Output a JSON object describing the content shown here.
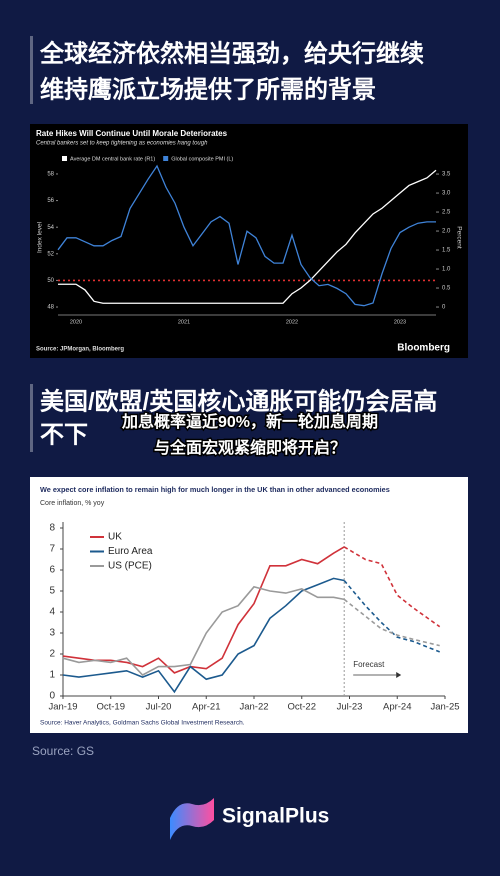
{
  "header": {
    "title_lines": [
      "全球经济依然相当强劲，给央行继续",
      "维持鹰派立场提供了所需的背景"
    ]
  },
  "section2": {
    "title_lines": [
      "美国/欧盟/英国核心通胀可能仍会居高",
      "不下"
    ],
    "overlay_lines": [
      "加息概率逼近90%，新一轮加息周期",
      "与全面宏观紧缩即将开启？"
    ]
  },
  "chart_data": [
    {
      "type": "line",
      "title": "Rate Hikes Will Continue Until Morale Deteriorates",
      "subtitle": "Central bankers set to keep tightening as economies hang tough",
      "categories": [
        null,
        null,
        "2020",
        null,
        null,
        null,
        null,
        null,
        null,
        null,
        null,
        null,
        null,
        null,
        "2021",
        null,
        null,
        null,
        null,
        null,
        null,
        null,
        null,
        null,
        null,
        null,
        "2022",
        null,
        null,
        null,
        null,
        null,
        null,
        null,
        null,
        null,
        null,
        null,
        "2023",
        null,
        null,
        null,
        null
      ],
      "series": [
        {
          "name": "Average DM central bank rate (R1)",
          "color": "#ffffff",
          "axis": "y2",
          "values": [
            0.6,
            0.6,
            0.6,
            0.45,
            0.15,
            0.1,
            0.1,
            0.1,
            0.1,
            0.1,
            0.1,
            0.1,
            0.1,
            0.1,
            0.1,
            0.1,
            0.1,
            0.1,
            0.1,
            0.1,
            0.1,
            0.1,
            0.1,
            0.1,
            0.1,
            0.1,
            0.35,
            0.5,
            0.7,
            0.95,
            1.2,
            1.45,
            1.65,
            1.95,
            2.2,
            2.45,
            2.6,
            2.8,
            3.0,
            3.2,
            3.3,
            3.4,
            3.6
          ]
        },
        {
          "name": "Global composite PMI (L)",
          "color": "#3f83d8",
          "values": [
            52.3,
            53.2,
            53.2,
            52.9,
            52.6,
            52.6,
            53.0,
            53.3,
            55.4,
            56.5,
            57.6,
            58.6,
            57.0,
            55.8,
            54.0,
            52.6,
            53.5,
            54.4,
            54.8,
            54.3,
            51.2,
            53.7,
            53.2,
            51.8,
            51.3,
            51.3,
            53.4,
            51.2,
            50.2,
            49.6,
            49.7,
            49.4,
            49.0,
            48.2,
            48.1,
            48.3,
            50.5,
            52.4,
            53.6,
            54.0,
            54.3,
            54.4,
            54.4
          ]
        }
      ],
      "ylabel": "Index level",
      "y2label": "Percent",
      "ylim": [
        47.4,
        59.05
      ],
      "yticks": [
        48,
        50,
        52,
        54,
        56,
        58
      ],
      "y2lim": [
        -0.21,
        3.87
      ],
      "y2ticks": [
        0,
        0.5,
        {
          "value": 1,
          "label": "1.0"
        },
        1.5,
        {
          "value": 2,
          "label": "2.0"
        },
        2.5,
        {
          "value": 3,
          "label": "3.0"
        },
        3.5
      ],
      "reference_line": 50,
      "reference_color": "#e03030",
      "source": "Source: JPMorgan, Bloomberg",
      "brand": "Bloomberg"
    },
    {
      "type": "line",
      "title": "We expect core inflation to remain high for much longer in the UK than in other advanced economies",
      "subtitle": "Core inflation, % yoy",
      "x": [
        "2019-01",
        "2019-04",
        "2019-07",
        "2019-10",
        "2020-01",
        "2020-04",
        "2020-07",
        "2020-10",
        "2021-01",
        "2021-04",
        "2021-07",
        "2021-10",
        "2022-01",
        "2022-04",
        "2022-07",
        "2022-10",
        "2023-01",
        "2023-04",
        "2023-06",
        "2023-10",
        "2024-01",
        "2024-04",
        "2024-07",
        "2024-12"
      ],
      "series": [
        {
          "name": "UK",
          "color": "#d0323a",
          "values": [
            1.9,
            1.8,
            1.7,
            1.7,
            1.6,
            1.4,
            1.8,
            1.1,
            1.4,
            1.3,
            1.8,
            3.4,
            4.4,
            6.2,
            6.2,
            6.5,
            6.3,
            6.8,
            7.1,
            6.5,
            6.3,
            4.8,
            4.2,
            3.3
          ]
        },
        {
          "name": "Euro Area",
          "color": "#1c5a8e",
          "values": [
            1.0,
            0.9,
            1.0,
            1.1,
            1.2,
            0.9,
            1.2,
            0.2,
            1.4,
            0.8,
            1.0,
            2.0,
            2.4,
            3.7,
            4.3,
            5.0,
            5.3,
            5.6,
            5.5,
            4.3,
            3.5,
            2.8,
            2.6,
            2.1
          ]
        },
        {
          "name": "US (PCE)",
          "color": "#9a9a9a",
          "values": [
            1.8,
            1.6,
            1.7,
            1.6,
            1.8,
            1.0,
            1.4,
            1.4,
            1.5,
            3.0,
            4.0,
            4.3,
            5.2,
            5.0,
            4.9,
            5.1,
            4.7,
            4.7,
            4.6,
            3.8,
            3.2,
            2.9,
            2.7,
            2.4
          ]
        }
      ],
      "xlim": [
        "2019-01",
        "2025-01"
      ],
      "xticks": [
        {
          "value": "2019-01",
          "label": "Jan-19"
        },
        {
          "value": "2019-10",
          "label": "Oct-19"
        },
        {
          "value": "2020-07",
          "label": "Jul-20"
        },
        {
          "value": "2021-04",
          "label": "Apr-21"
        },
        {
          "value": "2022-01",
          "label": "Jan-22"
        },
        {
          "value": "2022-10",
          "label": "Oct-22"
        },
        {
          "value": "2023-07",
          "label": "Jul-23"
        },
        {
          "value": "2024-04",
          "label": "Apr-24"
        },
        {
          "value": "2025-01",
          "label": "Jan-25"
        }
      ],
      "ylim": [
        0,
        8
      ],
      "yticks": [
        0,
        1,
        2,
        3,
        4,
        5,
        6,
        7,
        8
      ],
      "forecast_start": "2023-06",
      "forecast_label": "Forecast",
      "source": "Source: Haver Analytics, Goldman Sachs Global Investment Research."
    }
  ],
  "footer": {
    "source": "Source: GS",
    "brand": "SignalPlus"
  }
}
